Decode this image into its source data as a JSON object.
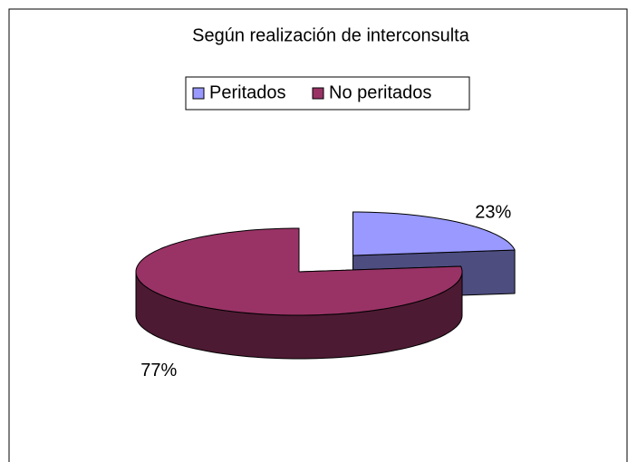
{
  "chart_data": {
    "type": "pie",
    "title": "Según realización de interconsulta",
    "categories": [
      "Peritados",
      "No peritados"
    ],
    "values": [
      23,
      77
    ],
    "value_labels": [
      "23%",
      "77%"
    ],
    "colors": [
      "#9999ff",
      "#993366"
    ],
    "legend": "top",
    "explode": [
      true,
      false
    ]
  }
}
